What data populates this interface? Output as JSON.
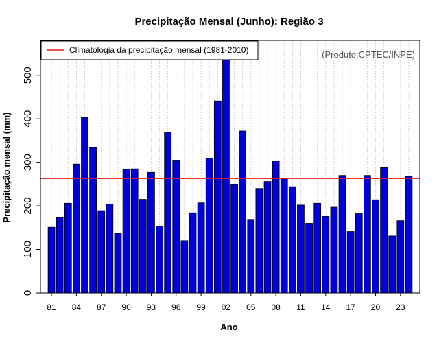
{
  "chart_data": {
    "type": "bar",
    "title": "Precipitação Mensal (Junho): Região 3",
    "xlabel": "Ano",
    "ylabel": "Precipitação mensal (mm)",
    "credit": "(Produto:CPTEC/INPE)",
    "legend": {
      "label": "Climatologia da precipitação mensal (1981-2010)",
      "position": "top-left"
    },
    "ylim": [
      0,
      580
    ],
    "yticks": [
      0,
      100,
      200,
      300,
      400,
      500
    ],
    "ytick_labels": [
      "0",
      "100",
      "200",
      "300",
      "400",
      "500"
    ],
    "climatology": 263,
    "categories": [
      "81",
      "82",
      "83",
      "84",
      "85",
      "86",
      "87",
      "88",
      "89",
      "90",
      "91",
      "92",
      "93",
      "94",
      "95",
      "96",
      "97",
      "98",
      "99",
      "00",
      "01",
      "02",
      "03",
      "04",
      "05",
      "06",
      "07",
      "08",
      "09",
      "10",
      "11",
      "12",
      "13",
      "14",
      "15",
      "16",
      "17",
      "18",
      "19",
      "20",
      "21",
      "22",
      "23",
      "24"
    ],
    "xtick_labels": [
      "81",
      "84",
      "87",
      "90",
      "93",
      "96",
      "99",
      "02",
      "05",
      "08",
      "11",
      "14",
      "17",
      "20",
      "23"
    ],
    "values": [
      151,
      173,
      206,
      296,
      403,
      334,
      189,
      204,
      137,
      284,
      285,
      215,
      277,
      153,
      369,
      305,
      120,
      184,
      207,
      309,
      441,
      543,
      250,
      372,
      169,
      240,
      256,
      303,
      262,
      244,
      202,
      160,
      206,
      176,
      197,
      270,
      141,
      182,
      270,
      214,
      288,
      131,
      166,
      268
    ],
    "colors": {
      "bar_fill": "#0000d8",
      "bar_stroke": "#000000",
      "climatology_line": "#e31a1c",
      "grid": "#c8c8c8"
    }
  }
}
